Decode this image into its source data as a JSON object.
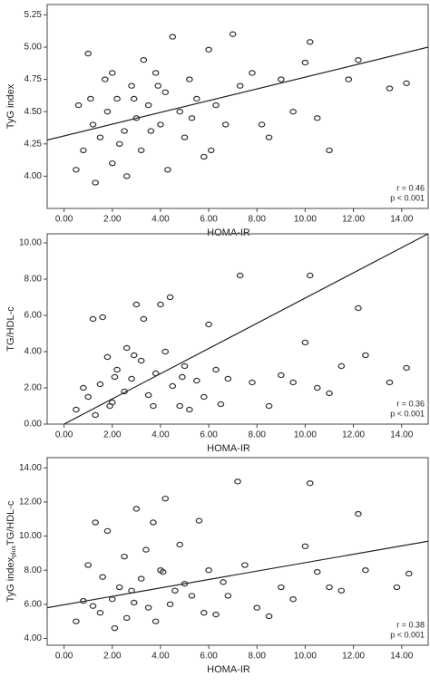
{
  "chart_data": [
    {
      "type": "scatter",
      "ylabel": "TyG index",
      "xlabel": "HOMA-IR",
      "color": "#333333",
      "x": [
        1.0,
        1.2,
        0.8,
        1.5,
        1.8,
        2.0,
        2.2,
        2.5,
        2.8,
        3.0,
        3.2,
        3.5,
        3.8,
        4.0,
        4.2,
        4.5,
        4.8,
        5.0,
        5.2,
        5.5,
        5.8,
        6.0,
        6.3,
        6.7,
        7.0,
        7.3,
        7.8,
        8.2,
        8.5,
        9.0,
        9.5,
        10.0,
        10.2,
        10.5,
        11.0,
        11.8,
        12.2,
        13.5,
        14.2,
        0.5,
        1.3,
        2.6,
        3.3,
        1.7,
        2.3,
        0.6,
        4.3,
        3.6,
        2.9,
        5.3,
        1.1,
        2.0,
        3.9,
        6.1
      ],
      "values": [
        4.95,
        4.4,
        4.2,
        4.3,
        4.5,
        4.1,
        4.6,
        4.35,
        4.7,
        4.45,
        4.2,
        4.55,
        4.8,
        4.4,
        4.65,
        5.08,
        4.5,
        4.3,
        4.75,
        4.6,
        4.15,
        4.98,
        4.55,
        4.4,
        5.1,
        4.7,
        4.8,
        4.4,
        4.3,
        4.75,
        4.5,
        4.88,
        5.04,
        4.45,
        4.2,
        4.75,
        4.9,
        4.68,
        4.72,
        4.05,
        3.95,
        4.0,
        4.9,
        4.75,
        4.25,
        4.55,
        4.05,
        4.35,
        4.6,
        4.45,
        4.6,
        4.8,
        4.7,
        4.2
      ],
      "fit_line": {
        "x": [
          -0.7,
          15.1
        ],
        "y": [
          4.28,
          5.0
        ]
      },
      "annotations": [
        "r = 0.46",
        "p < 0.001"
      ],
      "xlim": [
        -0.7,
        15.1
      ],
      "ylim": [
        3.75,
        5.33
      ],
      "xticks": [
        {
          "value": 0,
          "label": "0.00"
        },
        {
          "value": 2,
          "label": "2.00"
        },
        {
          "value": 4,
          "label": "4.00"
        },
        {
          "value": 6,
          "label": "6.00"
        },
        {
          "value": 8,
          "label": "8.00"
        },
        {
          "value": 10,
          "label": "10.00"
        },
        {
          "value": 12,
          "label": "12.00"
        },
        {
          "value": 14,
          "label": "14.00"
        }
      ],
      "yticks": [
        {
          "value": 4,
          "label": "4.00"
        },
        {
          "value": 4.25,
          "label": "4.25"
        },
        {
          "value": 4.5,
          "label": "4.50"
        },
        {
          "value": 4.75,
          "label": "4.75"
        },
        {
          "value": 5,
          "label": "5.00"
        },
        {
          "value": 5.25,
          "label": "5.25"
        }
      ]
    },
    {
      "type": "scatter",
      "ylabel": "TG/HDL-c",
      "xlabel": "HOMA-IR",
      "color": "#333333",
      "x": [
        0.5,
        1.0,
        1.2,
        1.5,
        1.6,
        2.0,
        2.2,
        2.5,
        2.8,
        3.0,
        3.2,
        3.5,
        3.8,
        4.0,
        4.2,
        4.5,
        4.8,
        5.0,
        5.2,
        5.5,
        6.0,
        6.3,
        6.8,
        7.3,
        7.8,
        8.5,
        9.0,
        9.5,
        10.0,
        10.2,
        10.5,
        11.0,
        11.5,
        12.2,
        12.5,
        13.5,
        14.2,
        0.8,
        1.8,
        2.6,
        3.3,
        4.4,
        1.3,
        2.1,
        3.7,
        5.8,
        6.5,
        2.9,
        1.9,
        4.9
      ],
      "values": [
        0.8,
        1.5,
        5.8,
        2.2,
        5.9,
        1.2,
        3.0,
        1.8,
        2.5,
        6.6,
        3.5,
        1.6,
        2.8,
        6.6,
        4.0,
        2.1,
        1.0,
        3.2,
        0.8,
        2.4,
        5.5,
        3.0,
        2.5,
        8.2,
        2.3,
        1.0,
        2.7,
        2.3,
        4.5,
        8.2,
        2.0,
        1.7,
        3.2,
        6.4,
        3.8,
        2.3,
        3.1,
        2.0,
        3.7,
        4.2,
        5.8,
        7.0,
        0.5,
        2.6,
        1.0,
        1.5,
        1.1,
        3.8,
        1.0,
        2.6
      ],
      "fit_line": {
        "x": [
          0.0,
          15.1
        ],
        "y": [
          0.0,
          10.5
        ]
      },
      "annotations": [
        "r = 0.36",
        "p < 0.001"
      ],
      "xlim": [
        -0.7,
        15.1
      ],
      "ylim": [
        0,
        10.5
      ],
      "xticks": [
        {
          "value": 0,
          "label": "0.00"
        },
        {
          "value": 2,
          "label": "2.00"
        },
        {
          "value": 4,
          "label": "4.00"
        },
        {
          "value": 6,
          "label": "6.00"
        },
        {
          "value": 8,
          "label": "8.00"
        },
        {
          "value": 10,
          "label": "10.00"
        },
        {
          "value": 12,
          "label": "12.00"
        },
        {
          "value": 14,
          "label": "14.00"
        }
      ],
      "yticks": [
        {
          "value": 0,
          "label": "0.00"
        },
        {
          "value": 2,
          "label": "2.00"
        },
        {
          "value": 4,
          "label": "4.00"
        },
        {
          "value": 6,
          "label": "6.00"
        },
        {
          "value": 8,
          "label": "8.00"
        },
        {
          "value": 10,
          "label": "10.00"
        }
      ]
    },
    {
      "type": "scatter",
      "ylabel": "TyG index",
      "ylabel_sub": "plus",
      "ylabel_end": "TG/HDL-c",
      "xlabel": "HOMA-IR",
      "color": "#333333",
      "x": [
        0.5,
        1.0,
        1.3,
        1.5,
        1.8,
        2.0,
        2.3,
        2.6,
        2.8,
        3.0,
        3.2,
        3.5,
        3.7,
        4.0,
        4.2,
        4.4,
        4.8,
        5.0,
        5.3,
        5.6,
        6.0,
        6.3,
        6.8,
        7.2,
        7.5,
        8.0,
        8.5,
        9.0,
        9.5,
        10.0,
        10.2,
        10.5,
        11.0,
        11.5,
        12.2,
        12.5,
        13.8,
        14.3,
        0.8,
        1.6,
        2.5,
        3.4,
        4.6,
        2.1,
        3.8,
        5.8,
        6.6,
        1.2,
        2.9,
        4.1
      ],
      "values": [
        5.0,
        8.3,
        10.8,
        5.5,
        10.3,
        6.3,
        7.0,
        5.2,
        6.8,
        11.6,
        7.5,
        5.8,
        10.8,
        8.0,
        12.2,
        6.0,
        9.5,
        7.2,
        6.5,
        10.9,
        8.0,
        5.4,
        6.5,
        13.2,
        8.3,
        5.8,
        5.3,
        7.0,
        6.3,
        9.4,
        13.1,
        7.9,
        7.0,
        6.8,
        11.3,
        8.0,
        7.0,
        7.8,
        6.2,
        7.6,
        8.8,
        9.2,
        6.8,
        4.6,
        5.0,
        5.5,
        7.3,
        5.9,
        6.1,
        7.9
      ],
      "fit_line": {
        "x": [
          -0.7,
          15.1
        ],
        "y": [
          5.8,
          9.7
        ]
      },
      "annotations": [
        "r = 0.38",
        "p < 0.001"
      ],
      "xlim": [
        -0.7,
        15.1
      ],
      "ylim": [
        3.6,
        14.6
      ],
      "xticks": [
        {
          "value": 0,
          "label": "0.00"
        },
        {
          "value": 2,
          "label": "2.00"
        },
        {
          "value": 4,
          "label": "4.00"
        },
        {
          "value": 6,
          "label": "6.00"
        },
        {
          "value": 8,
          "label": "8.00"
        },
        {
          "value": 10,
          "label": "10.00"
        },
        {
          "value": 12,
          "label": "12.00"
        },
        {
          "value": 14,
          "label": "14.00"
        }
      ],
      "yticks": [
        {
          "value": 4,
          "label": "4.00"
        },
        {
          "value": 6,
          "label": "6.00"
        },
        {
          "value": 8,
          "label": "8.00"
        },
        {
          "value": 10,
          "label": "10.00"
        },
        {
          "value": 12,
          "label": "12.00"
        },
        {
          "value": 14,
          "label": "14.00"
        }
      ]
    }
  ]
}
